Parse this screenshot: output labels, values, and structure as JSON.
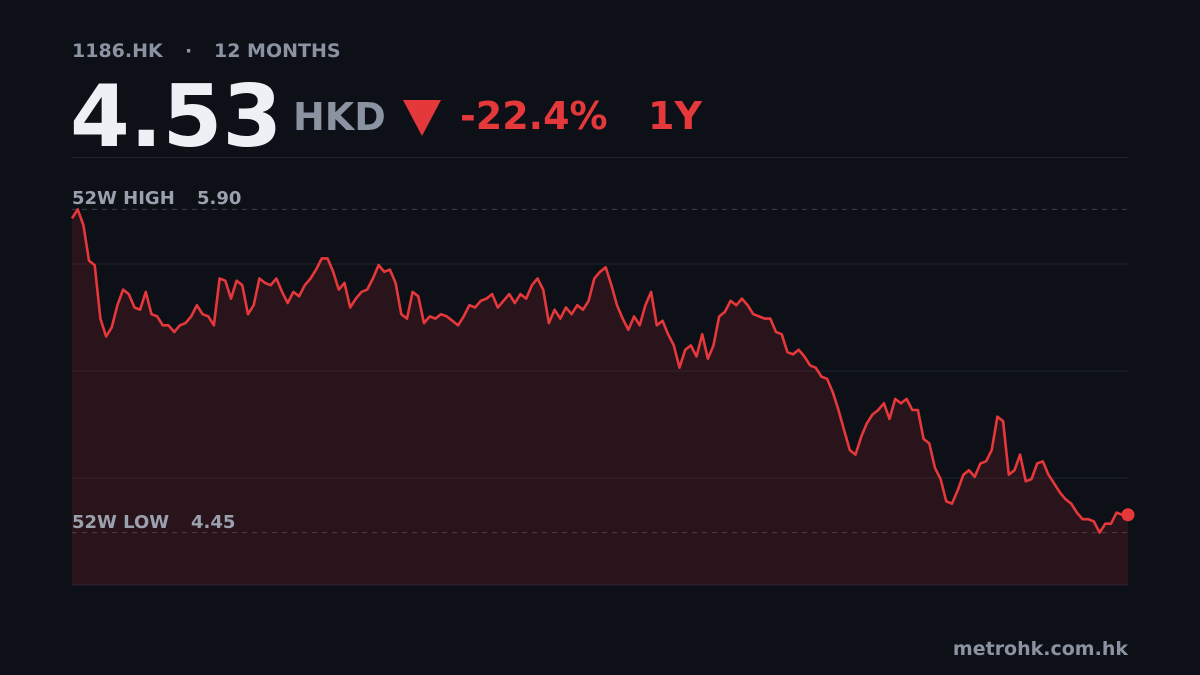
{
  "chart_data": {
    "type": "line",
    "ticker": "1186.HK",
    "separator": "·",
    "period_label": "12 MONTHS",
    "price": 4.53,
    "currency": "HKD",
    "change": {
      "value": -22.4,
      "label": "-22.4%"
    },
    "change_period": "1Y",
    "high_label": "52W HIGH",
    "high": {
      "value": 5.9,
      "label": "5.90"
    },
    "low_label": "52W LOW",
    "low": 4.45,
    "color": "#e5383b",
    "ylim": [
      4.215,
      6.135
    ],
    "yticks": [
      4.695,
      5.175,
      5.655
    ],
    "grid": true,
    "values": [
      5.86,
      5.9,
      5.83,
      5.67,
      5.65,
      5.41,
      5.33,
      5.37,
      5.47,
      5.54,
      5.52,
      5.46,
      5.45,
      5.53,
      5.43,
      5.42,
      5.38,
      5.38,
      5.35,
      5.38,
      5.39,
      5.42,
      5.47,
      5.43,
      5.42,
      5.38,
      5.59,
      5.58,
      5.5,
      5.58,
      5.56,
      5.43,
      5.47,
      5.59,
      5.57,
      5.56,
      5.59,
      5.53,
      5.48,
      5.53,
      5.51,
      5.56,
      5.59,
      5.63,
      5.68,
      5.68,
      5.62,
      5.54,
      5.57,
      5.46,
      5.5,
      5.53,
      5.54,
      5.59,
      5.65,
      5.62,
      5.63,
      5.57,
      5.43,
      5.41,
      5.53,
      5.51,
      5.39,
      5.42,
      5.41,
      5.43,
      5.42,
      5.4,
      5.38,
      5.42,
      5.47,
      5.46,
      5.49,
      5.5,
      5.52,
      5.46,
      5.49,
      5.52,
      5.48,
      5.52,
      5.5,
      5.56,
      5.59,
      5.54,
      5.39,
      5.45,
      5.41,
      5.46,
      5.43,
      5.47,
      5.45,
      5.49,
      5.59,
      5.62,
      5.64,
      5.56,
      5.47,
      5.41,
      5.36,
      5.42,
      5.38,
      5.47,
      5.53,
      5.38,
      5.4,
      5.34,
      5.29,
      5.19,
      5.27,
      5.29,
      5.24,
      5.34,
      5.23,
      5.29,
      5.42,
      5.44,
      5.49,
      5.47,
      5.5,
      5.47,
      5.43,
      5.42,
      5.41,
      5.41,
      5.35,
      5.34,
      5.26,
      5.25,
      5.27,
      5.24,
      5.2,
      5.19,
      5.15,
      5.14,
      5.08,
      5.0,
      4.91,
      4.82,
      4.8,
      4.88,
      4.94,
      4.98,
      5.0,
      5.03,
      4.96,
      5.05,
      5.03,
      5.05,
      5.0,
      5.0,
      4.87,
      4.85,
      4.74,
      4.69,
      4.59,
      4.58,
      4.64,
      4.71,
      4.73,
      4.7,
      4.76,
      4.77,
      4.82,
      4.97,
      4.95,
      4.71,
      4.73,
      4.8,
      4.68,
      4.69,
      4.76,
      4.77,
      4.71,
      4.67,
      4.63,
      4.6,
      4.58,
      4.54,
      4.51,
      4.51,
      4.5,
      4.45,
      4.49,
      4.49,
      4.54,
      4.53,
      4.53
    ],
    "source": "metrohk.com.hk"
  }
}
